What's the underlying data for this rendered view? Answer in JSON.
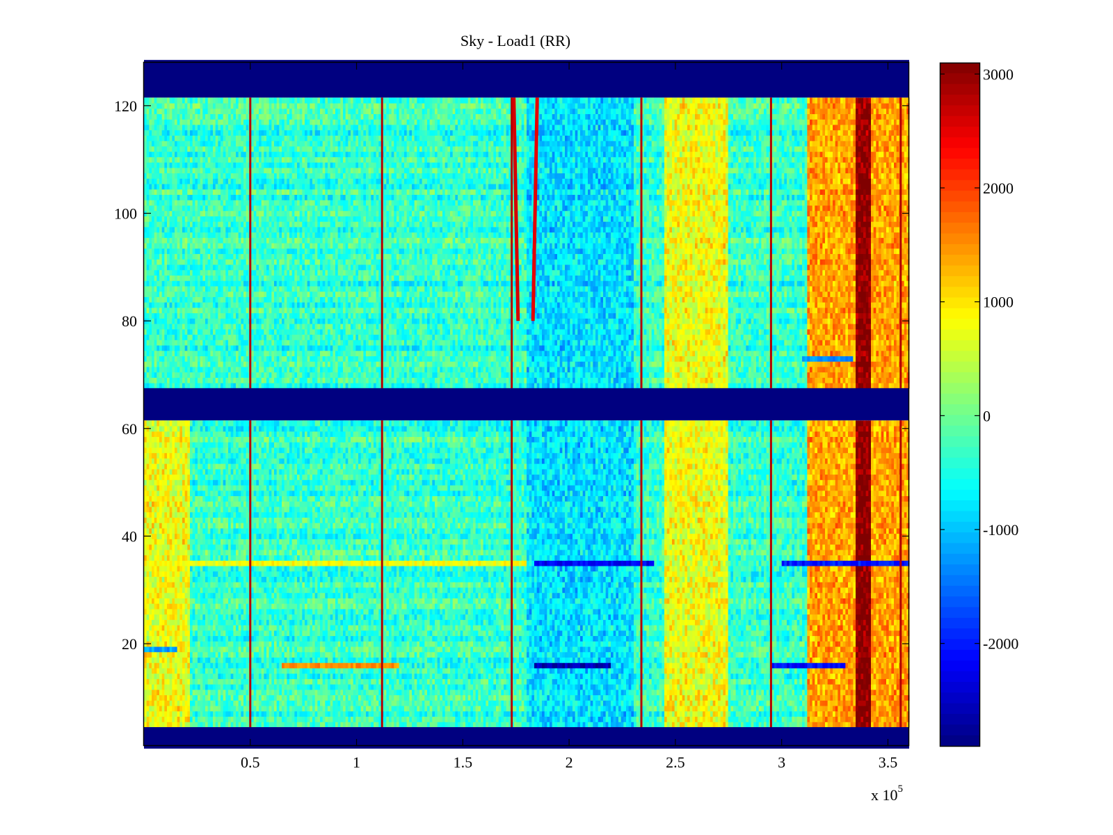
{
  "chart_data": {
    "type": "heatmap",
    "title": "Sky - Load1 (RR)",
    "xlabel": "",
    "ylabel": "",
    "x_multiplier_label": "x 10",
    "x_multiplier_exponent": "5",
    "xlim": [
      0,
      3.6
    ],
    "ylim": [
      1,
      128
    ],
    "xticks": [
      0.5,
      1,
      1.5,
      2,
      2.5,
      3,
      3.5
    ],
    "xtick_labels": [
      "0.5",
      "1",
      "1.5",
      "2",
      "2.5",
      "3",
      "3.5"
    ],
    "yticks": [
      20,
      40,
      60,
      80,
      100,
      120
    ],
    "ytick_labels": [
      "20",
      "40",
      "60",
      "80",
      "100",
      "120"
    ],
    "colormap": "jet",
    "clim": [
      -2900,
      3100
    ],
    "colorbar_ticks": [
      3000,
      2000,
      1000,
      0,
      -1000,
      -2000
    ],
    "colorbar_tick_labels": [
      "3000",
      "2000",
      "1000",
      "0",
      "-1000",
      "-2000"
    ],
    "grid": false,
    "masked_rows": [
      {
        "from": 1,
        "to": 4,
        "value": -2900
      },
      {
        "from": 62,
        "to": 67,
        "value": -2900
      },
      {
        "from": 122,
        "to": 128,
        "value": -2900
      }
    ],
    "vertical_spikes_x": [
      0.5,
      1.12,
      1.73,
      2.34,
      2.95,
      3.56
    ],
    "spike_value": 2800,
    "interference_tracks": [
      {
        "x_start": 1.76,
        "x_end": 1.74,
        "y_from": 80,
        "y_to": 122,
        "value": 2600
      },
      {
        "x_start": 1.83,
        "x_end": 1.85,
        "y_from": 80,
        "y_to": 122,
        "value": 2500
      }
    ],
    "regions": [
      {
        "x_from": 2.45,
        "x_to": 2.75,
        "y_from": 5,
        "y_to": 121,
        "value": 900,
        "label": "warm band near 2.6"
      },
      {
        "x_from": 3.12,
        "x_to": 3.6,
        "y_from": 5,
        "y_to": 121,
        "value": 1500,
        "label": "hot band beyond 3.1"
      },
      {
        "x_from": 3.35,
        "x_to": 3.42,
        "y_from": 5,
        "y_to": 121,
        "value": 2600,
        "label": "peak column"
      },
      {
        "x_from": 1.8,
        "x_to": 2.3,
        "y_from": 5,
        "y_to": 121,
        "value": -700,
        "label": "cool band near 2.0"
      },
      {
        "x_from": 0,
        "x_to": 0.22,
        "y_from": 5,
        "y_to": 61,
        "value": 900,
        "label": "warm edge at low x"
      }
    ],
    "row_stripes": [
      {
        "row": 35,
        "x_from": 0,
        "x_to": 1.8,
        "value": 800
      },
      {
        "row": 35,
        "x_from": 1.83,
        "x_to": 2.4,
        "value": -2200
      },
      {
        "row": 35,
        "x_from": 3.0,
        "x_to": 3.6,
        "value": -2000
      },
      {
        "row": 16,
        "x_from": 0.65,
        "x_to": 1.2,
        "value": 1500
      },
      {
        "row": 16,
        "x_from": 1.83,
        "x_to": 2.2,
        "value": -2600
      },
      {
        "row": 16,
        "x_from": 2.95,
        "x_to": 3.3,
        "value": -2100
      },
      {
        "row": 73,
        "x_from": 3.1,
        "x_to": 3.33,
        "value": -1300
      },
      {
        "row": 19,
        "x_from": 0,
        "x_to": 0.15,
        "value": -1200
      }
    ]
  }
}
